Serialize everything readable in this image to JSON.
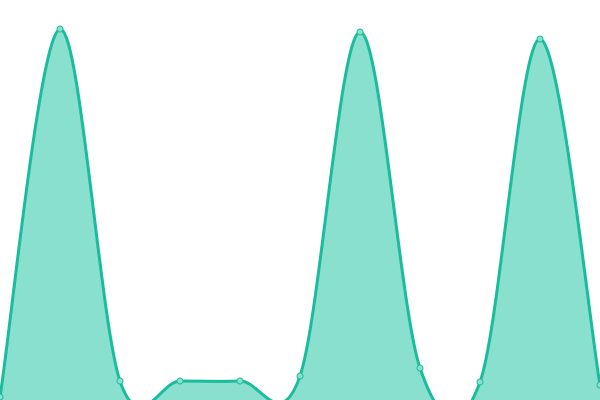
{
  "chart_data": {
    "type": "area",
    "x": [
      0,
      1,
      2,
      3,
      4,
      5,
      6,
      7,
      8,
      9,
      10
    ],
    "values": [
      3,
      371,
      19,
      19,
      19,
      24,
      368,
      32,
      18,
      361,
      15
    ],
    "ylim": [
      0,
      400
    ],
    "grid": false,
    "axes": false,
    "colors": {
      "line": "#1abc9c",
      "fill": "#89e0cf",
      "point_fill": "#89e0cf"
    }
  }
}
